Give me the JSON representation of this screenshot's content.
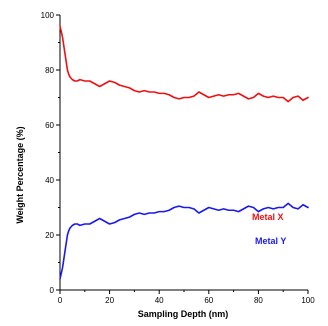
{
  "chart_data": {
    "type": "line",
    "xlabel": "Sampling Depth (nm)",
    "ylabel": "Weight Percentage (%)",
    "xlim": [
      0,
      100
    ],
    "ylim": [
      0,
      100
    ],
    "x_ticks": [
      "0",
      "20",
      "40",
      "60",
      "80",
      "100"
    ],
    "y_ticks": [
      "0",
      "20",
      "40",
      "60",
      "80",
      "100"
    ],
    "grid": false,
    "series": [
      {
        "name": "Metal X",
        "color": "#ee1111",
        "x": [
          0,
          0.5,
          1,
          1.5,
          2,
          2.5,
          3,
          3.5,
          4,
          5,
          6,
          7,
          8,
          10,
          12,
          14,
          16,
          18,
          20,
          22,
          24,
          26,
          28,
          30,
          32,
          34,
          36,
          38,
          40,
          42,
          44,
          46,
          48,
          50,
          52,
          54,
          56,
          58,
          60,
          62,
          64,
          66,
          68,
          70,
          72,
          74,
          76,
          78,
          80,
          82,
          84,
          86,
          88,
          90,
          92,
          94,
          96,
          98,
          100
        ],
        "y": [
          96,
          94,
          92,
          89,
          86,
          83,
          80,
          78.5,
          77.5,
          76.5,
          76,
          76,
          76.5,
          76,
          76,
          75,
          74,
          75,
          76,
          75.5,
          74.5,
          74,
          73.5,
          72.5,
          72,
          72.5,
          72,
          72,
          71.5,
          71.5,
          71,
          70,
          69.5,
          70,
          70,
          70.5,
          72,
          71,
          70,
          70.5,
          71,
          70.5,
          71,
          71,
          71.5,
          70.5,
          69.5,
          70,
          71.5,
          70.5,
          70,
          70.5,
          70,
          70,
          68.5,
          70,
          70.5,
          69,
          70
        ]
      },
      {
        "name": "Metal Y",
        "color": "#1a1aee",
        "x": [
          0,
          0.5,
          1,
          1.5,
          2,
          2.5,
          3,
          3.5,
          4,
          5,
          6,
          7,
          8,
          10,
          12,
          14,
          16,
          18,
          20,
          22,
          24,
          26,
          28,
          30,
          32,
          34,
          36,
          38,
          40,
          42,
          44,
          46,
          48,
          50,
          52,
          54,
          56,
          58,
          60,
          62,
          64,
          66,
          68,
          70,
          72,
          74,
          76,
          78,
          80,
          82,
          84,
          86,
          88,
          90,
          92,
          94,
          96,
          98,
          100
        ],
        "y": [
          4,
          6,
          8,
          11,
          14,
          17,
          20,
          21.5,
          22.5,
          23.5,
          24,
          24,
          23.5,
          24,
          24,
          25,
          26,
          25,
          24,
          24.5,
          25.5,
          26,
          26.5,
          27.5,
          28,
          27.5,
          28,
          28,
          28.5,
          28.5,
          29,
          30,
          30.5,
          30,
          30,
          29.5,
          28,
          29,
          30,
          29.5,
          29,
          29.5,
          29,
          29,
          28.5,
          29.5,
          30.5,
          30,
          28.5,
          29.5,
          30,
          29.5,
          30,
          30,
          31.5,
          30,
          29.5,
          31,
          30
        ]
      }
    ]
  }
}
